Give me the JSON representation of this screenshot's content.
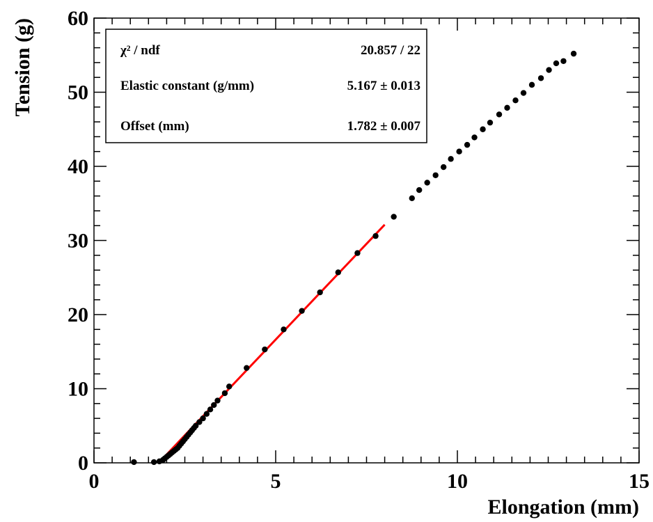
{
  "chart_data": {
    "type": "scatter",
    "xlabel": "Elongation (mm)",
    "ylabel": "Tension (g)",
    "xlim": [
      0,
      15
    ],
    "ylim": [
      0,
      60
    ],
    "x_ticks": [
      "0",
      "5",
      "10",
      "15"
    ],
    "y_ticks": [
      "0",
      "10",
      "20",
      "30",
      "40",
      "50",
      "60"
    ],
    "grid": false,
    "legend_placement": "top-left",
    "series": [
      {
        "marker": "filled-circle",
        "color": "#000000",
        "points": [
          [
            1.1,
            0.1
          ],
          [
            1.65,
            0.1
          ],
          [
            1.8,
            0.2
          ],
          [
            1.9,
            0.4
          ],
          [
            1.95,
            0.6
          ],
          [
            2.0,
            0.8
          ],
          [
            2.05,
            1.0
          ],
          [
            2.1,
            1.2
          ],
          [
            2.15,
            1.4
          ],
          [
            2.2,
            1.6
          ],
          [
            2.25,
            1.8
          ],
          [
            2.3,
            2.0
          ],
          [
            2.35,
            2.3
          ],
          [
            2.4,
            2.6
          ],
          [
            2.45,
            2.9
          ],
          [
            2.5,
            3.2
          ],
          [
            2.55,
            3.5
          ],
          [
            2.6,
            3.8
          ],
          [
            2.65,
            4.1
          ],
          [
            2.7,
            4.4
          ],
          [
            2.75,
            4.7
          ],
          [
            2.8,
            5.0
          ],
          [
            2.9,
            5.5
          ],
          [
            3.0,
            6.0
          ],
          [
            3.1,
            6.6
          ],
          [
            3.2,
            7.2
          ],
          [
            3.3,
            7.8
          ],
          [
            3.4,
            8.4
          ],
          [
            3.6,
            9.4
          ],
          [
            3.72,
            10.3
          ],
          [
            4.2,
            12.8
          ],
          [
            4.7,
            15.3
          ],
          [
            5.22,
            18.0
          ],
          [
            5.72,
            20.5
          ],
          [
            6.22,
            23.0
          ],
          [
            6.72,
            25.7
          ],
          [
            7.25,
            28.3
          ],
          [
            7.75,
            30.6
          ],
          [
            8.25,
            33.2
          ],
          [
            8.75,
            35.7
          ],
          [
            8.95,
            36.8
          ],
          [
            9.17,
            37.8
          ],
          [
            9.4,
            38.8
          ],
          [
            9.62,
            39.9
          ],
          [
            9.82,
            41.0
          ],
          [
            10.05,
            42.0
          ],
          [
            10.27,
            42.9
          ],
          [
            10.47,
            43.9
          ],
          [
            10.7,
            45.0
          ],
          [
            10.9,
            45.9
          ],
          [
            11.15,
            47.0
          ],
          [
            11.37,
            47.9
          ],
          [
            11.6,
            48.9
          ],
          [
            11.82,
            49.9
          ],
          [
            12.05,
            51.0
          ],
          [
            12.3,
            51.9
          ],
          [
            12.52,
            53.0
          ],
          [
            12.72,
            53.9
          ],
          [
            12.92,
            54.2
          ],
          [
            13.2,
            55.2
          ]
        ]
      }
    ],
    "fit": {
      "color": "#ff0000",
      "slope": 5.167,
      "offset": 1.782,
      "x_range": [
        1.782,
        8.0
      ]
    },
    "stats_box": {
      "rows": [
        {
          "label": "χ² / ndf",
          "value": "20.857 / 22"
        },
        {
          "label": "Elastic constant (g/mm)",
          "value": "5.167 ± 0.013"
        },
        {
          "label": "Offset (mm)",
          "value": "1.782 ± 0.007"
        }
      ]
    }
  }
}
